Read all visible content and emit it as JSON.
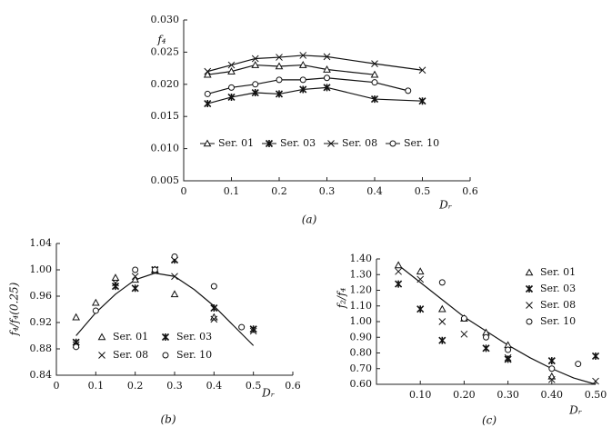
{
  "chart_data": [
    {
      "type": "line",
      "ylabel": "f₄",
      "xlabel": "Dᵣ",
      "caption": "(a)",
      "xlim": [
        0,
        0.6
      ],
      "xticks": [
        0,
        0.1,
        0.2,
        0.3,
        0.4,
        0.5,
        0.6
      ],
      "ylim": [
        0.005,
        0.03
      ],
      "yticks": [
        0.005,
        {
          "value": 0.01,
          "label": "0.010"
        },
        0.015,
        {
          "value": 0.02,
          "label": "0.020"
        },
        0.025,
        {
          "value": 0.03,
          "label": "0.030"
        }
      ],
      "color": "#111",
      "series": [
        {
          "name": "Ser. 01",
          "marker": "triangle",
          "x": [
            0.05,
            0.1,
            0.15,
            0.2,
            0.25,
            0.3,
            0.4
          ],
          "values": [
            0.0215,
            0.022,
            0.023,
            0.0228,
            0.023,
            0.0223,
            0.0215
          ]
        },
        {
          "name": "Ser. 03",
          "marker": "asterisk",
          "x": [
            0.05,
            0.1,
            0.15,
            0.2,
            0.25,
            0.3,
            0.4,
            0.5
          ],
          "values": [
            0.017,
            0.018,
            0.0187,
            0.0185,
            0.0192,
            0.0195,
            0.0177,
            0.0174
          ]
        },
        {
          "name": "Ser. 08",
          "marker": "cross",
          "x": [
            0.05,
            0.1,
            0.15,
            0.2,
            0.25,
            0.3,
            0.4,
            0.5
          ],
          "values": [
            0.022,
            0.023,
            0.024,
            0.0242,
            0.0245,
            0.0243,
            0.0232,
            0.0222
          ]
        },
        {
          "name": "Ser. 10",
          "marker": "circle",
          "x": [
            0.05,
            0.1,
            0.15,
            0.2,
            0.25,
            0.3,
            0.4,
            0.47
          ],
          "values": [
            0.0185,
            0.0195,
            0.02,
            0.0207,
            0.0207,
            0.021,
            0.0203,
            0.019
          ]
        }
      ]
    },
    {
      "type": "scatter",
      "ylabel": "f₄/f₄(0.25)",
      "xlabel": "Dᵣ",
      "caption": "(b)",
      "xlim": [
        0,
        0.6
      ],
      "xticks": [
        0,
        0.1,
        0.2,
        0.3,
        0.4,
        0.5,
        0.6
      ],
      "ylim": [
        0.84,
        1.04
      ],
      "yticks": [
        0.84,
        0.88,
        0.92,
        0.96,
        {
          "value": 1.0,
          "label": "1.00"
        },
        1.04
      ],
      "color": "#111",
      "series": [
        {
          "name": "Ser. 01",
          "marker": "triangle",
          "x": [
            0.05,
            0.1,
            0.15,
            0.2,
            0.25,
            0.3,
            0.4
          ],
          "values": [
            0.928,
            0.95,
            0.988,
            0.985,
            1.0,
            0.963,
            0.928
          ]
        },
        {
          "name": "Ser. 03",
          "marker": "asterisk",
          "x": [
            0.05,
            0.15,
            0.2,
            0.25,
            0.3,
            0.4,
            0.5
          ],
          "values": [
            0.89,
            0.975,
            0.972,
            1.0,
            1.015,
            0.942,
            0.91
          ]
        },
        {
          "name": "Ser. 08",
          "marker": "cross",
          "x": [
            0.05,
            0.15,
            0.2,
            0.25,
            0.3,
            0.4,
            0.5
          ],
          "values": [
            0.886,
            0.98,
            0.99,
            1.0,
            0.99,
            0.925,
            0.907
          ]
        },
        {
          "name": "Ser. 10",
          "marker": "circle",
          "x": [
            0.05,
            0.1,
            0.2,
            0.25,
            0.3,
            0.4,
            0.47
          ],
          "values": [
            0.883,
            0.938,
            1.0,
            1.0,
            1.02,
            0.975,
            0.913
          ]
        }
      ],
      "fit": {
        "x": [
          0.05,
          0.1,
          0.15,
          0.2,
          0.25,
          0.3,
          0.35,
          0.4,
          0.45,
          0.5
        ],
        "values": [
          0.9,
          0.935,
          0.963,
          0.985,
          0.995,
          0.99,
          0.97,
          0.945,
          0.915,
          0.885
        ]
      }
    },
    {
      "type": "scatter",
      "ylabel": "f₂/f₄",
      "xlabel": "Dᵣ",
      "caption": "(c)",
      "xlim": [
        0,
        0.5
      ],
      "xticks": [
        {
          "value": 0.1,
          "label": "0.10"
        },
        {
          "value": 0.2,
          "label": "0.20"
        },
        {
          "value": 0.3,
          "label": "0.30"
        },
        {
          "value": 0.4,
          "label": "0.40"
        },
        {
          "value": 0.5,
          "label": "0.50"
        }
      ],
      "ylim": [
        0.6,
        1.4
      ],
      "yticks": [
        {
          "value": 0.6,
          "label": "0.60"
        },
        {
          "value": 0.7,
          "label": "0.70"
        },
        {
          "value": 0.8,
          "label": "0.80"
        },
        {
          "value": 0.9,
          "label": "0.90"
        },
        {
          "value": 1.0,
          "label": "1.00"
        },
        {
          "value": 1.1,
          "label": "1.10"
        },
        {
          "value": 1.2,
          "label": "1.20"
        },
        {
          "value": 1.3,
          "label": "1.30"
        },
        {
          "value": 1.4,
          "label": "1.40"
        }
      ],
      "color": "#111",
      "series": [
        {
          "name": "Ser. 01",
          "marker": "triangle",
          "x": [
            0.05,
            0.1,
            0.15,
            0.2,
            0.25,
            0.3,
            0.4
          ],
          "values": [
            1.36,
            1.32,
            1.08,
            1.02,
            0.93,
            0.85,
            0.65
          ]
        },
        {
          "name": "Ser. 03",
          "marker": "asterisk",
          "x": [
            0.05,
            0.1,
            0.15,
            0.25,
            0.3,
            0.4,
            0.5
          ],
          "values": [
            1.24,
            1.08,
            0.88,
            0.83,
            0.76,
            0.75,
            0.78
          ]
        },
        {
          "name": "Ser. 08",
          "marker": "cross",
          "x": [
            0.05,
            0.1,
            0.15,
            0.2,
            0.25,
            0.3,
            0.4,
            0.5
          ],
          "values": [
            1.32,
            1.27,
            1.0,
            0.92,
            0.83,
            0.77,
            0.63,
            0.62
          ]
        },
        {
          "name": "Ser. 10",
          "marker": "circle",
          "x": [
            0.15,
            0.2,
            0.25,
            0.3,
            0.4,
            0.46
          ],
          "values": [
            1.25,
            1.02,
            0.9,
            0.82,
            0.7,
            0.73
          ]
        }
      ],
      "fit": {
        "x": [
          0.05,
          0.1,
          0.15,
          0.2,
          0.25,
          0.3,
          0.35,
          0.4,
          0.45,
          0.5
        ],
        "values": [
          1.36,
          1.25,
          1.14,
          1.03,
          0.94,
          0.85,
          0.77,
          0.7,
          0.64,
          0.6
        ]
      }
    }
  ]
}
